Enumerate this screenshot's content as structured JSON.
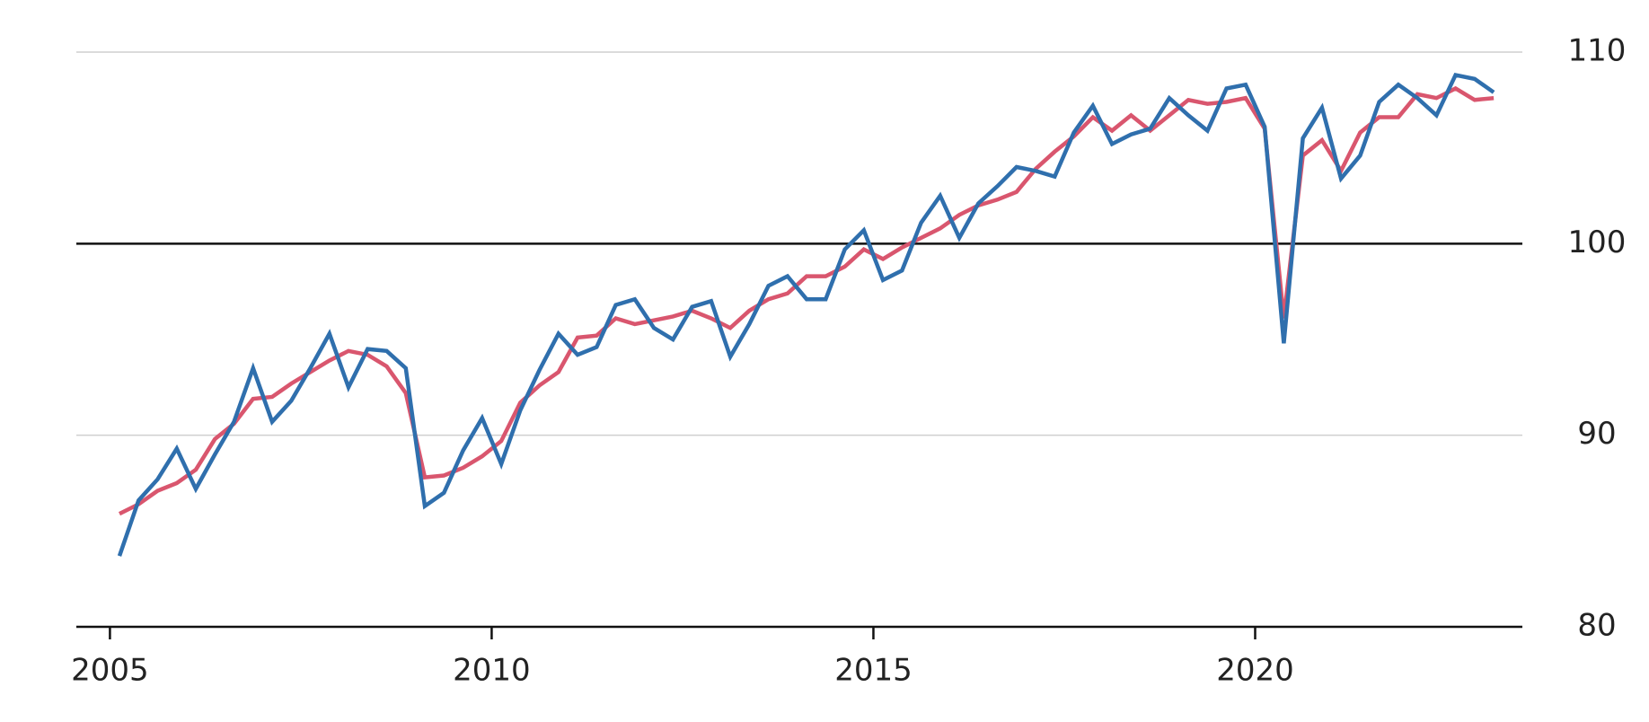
{
  "chart_data": {
    "type": "line",
    "x": [
      2005.125,
      2005.375,
      2005.625,
      2005.875,
      2006.125,
      2006.375,
      2006.625,
      2006.875,
      2007.125,
      2007.375,
      2007.625,
      2007.875,
      2008.125,
      2008.375,
      2008.625,
      2008.875,
      2009.125,
      2009.375,
      2009.625,
      2009.875,
      2010.125,
      2010.375,
      2010.625,
      2010.875,
      2011.125,
      2011.375,
      2011.625,
      2011.875,
      2012.125,
      2012.375,
      2012.625,
      2012.875,
      2013.125,
      2013.375,
      2013.625,
      2013.875,
      2014.125,
      2014.375,
      2014.625,
      2014.875,
      2015.125,
      2015.375,
      2015.625,
      2015.875,
      2016.125,
      2016.375,
      2016.625,
      2016.875,
      2017.125,
      2017.375,
      2017.625,
      2017.875,
      2018.125,
      2018.375,
      2018.625,
      2018.875,
      2019.125,
      2019.375,
      2019.625,
      2019.875,
      2020.125,
      2020.375,
      2020.625,
      2020.875,
      2021.125,
      2021.375,
      2021.625,
      2021.875,
      2022.125,
      2022.375,
      2022.625,
      2022.875,
      2023.125
    ],
    "series": [
      {
        "color": "#d9566e",
        "values": [
          85.9,
          86.4,
          87.1,
          87.5,
          88.2,
          89.8,
          90.6,
          91.9,
          92.0,
          92.7,
          93.3,
          93.9,
          94.4,
          94.2,
          93.6,
          92.2,
          87.8,
          87.9,
          88.3,
          88.9,
          89.7,
          91.7,
          92.6,
          93.3,
          95.1,
          95.2,
          96.1,
          95.8,
          96.0,
          96.2,
          96.5,
          96.1,
          95.6,
          96.5,
          97.1,
          97.4,
          98.3,
          98.3,
          98.8,
          99.7,
          99.2,
          99.8,
          100.3,
          100.8,
          101.5,
          102.0,
          102.3,
          102.7,
          103.9,
          104.8,
          105.6,
          106.6,
          105.9,
          106.7,
          105.9,
          106.7,
          107.5,
          107.3,
          107.4,
          107.6,
          106.0,
          96.1,
          104.6,
          105.4,
          103.8,
          105.8,
          106.6,
          106.6,
          107.8,
          107.6,
          108.1,
          107.5,
          107.6
        ]
      },
      {
        "color": "#2f6fad",
        "values": [
          83.7,
          86.6,
          87.7,
          89.3,
          87.2,
          89.0,
          90.7,
          93.5,
          90.7,
          91.8,
          93.5,
          95.3,
          92.5,
          94.5,
          94.4,
          93.5,
          86.3,
          87.0,
          89.2,
          90.9,
          88.5,
          91.3,
          93.4,
          95.3,
          94.2,
          94.6,
          96.8,
          97.1,
          95.6,
          95.0,
          96.7,
          97.0,
          94.1,
          95.8,
          97.8,
          98.3,
          97.1,
          97.1,
          99.7,
          100.7,
          98.1,
          98.6,
          101.1,
          102.5,
          100.3,
          102.1,
          103.0,
          104.0,
          103.8,
          103.5,
          105.8,
          107.2,
          105.2,
          105.7,
          106.0,
          107.6,
          106.7,
          105.9,
          108.1,
          108.3,
          106.1,
          94.8,
          105.5,
          107.1,
          103.4,
          104.6,
          107.4,
          108.3,
          107.6,
          106.7,
          108.8,
          108.6,
          107.9
        ]
      }
    ],
    "xlim": [
      2004.56,
      2023.5
    ],
    "xticks": [
      2005,
      2010,
      2015,
      2020
    ],
    "ylim": [
      80,
      110
    ],
    "yticks": [
      80,
      90,
      100,
      110
    ],
    "grid": true,
    "baseline": 100
  }
}
